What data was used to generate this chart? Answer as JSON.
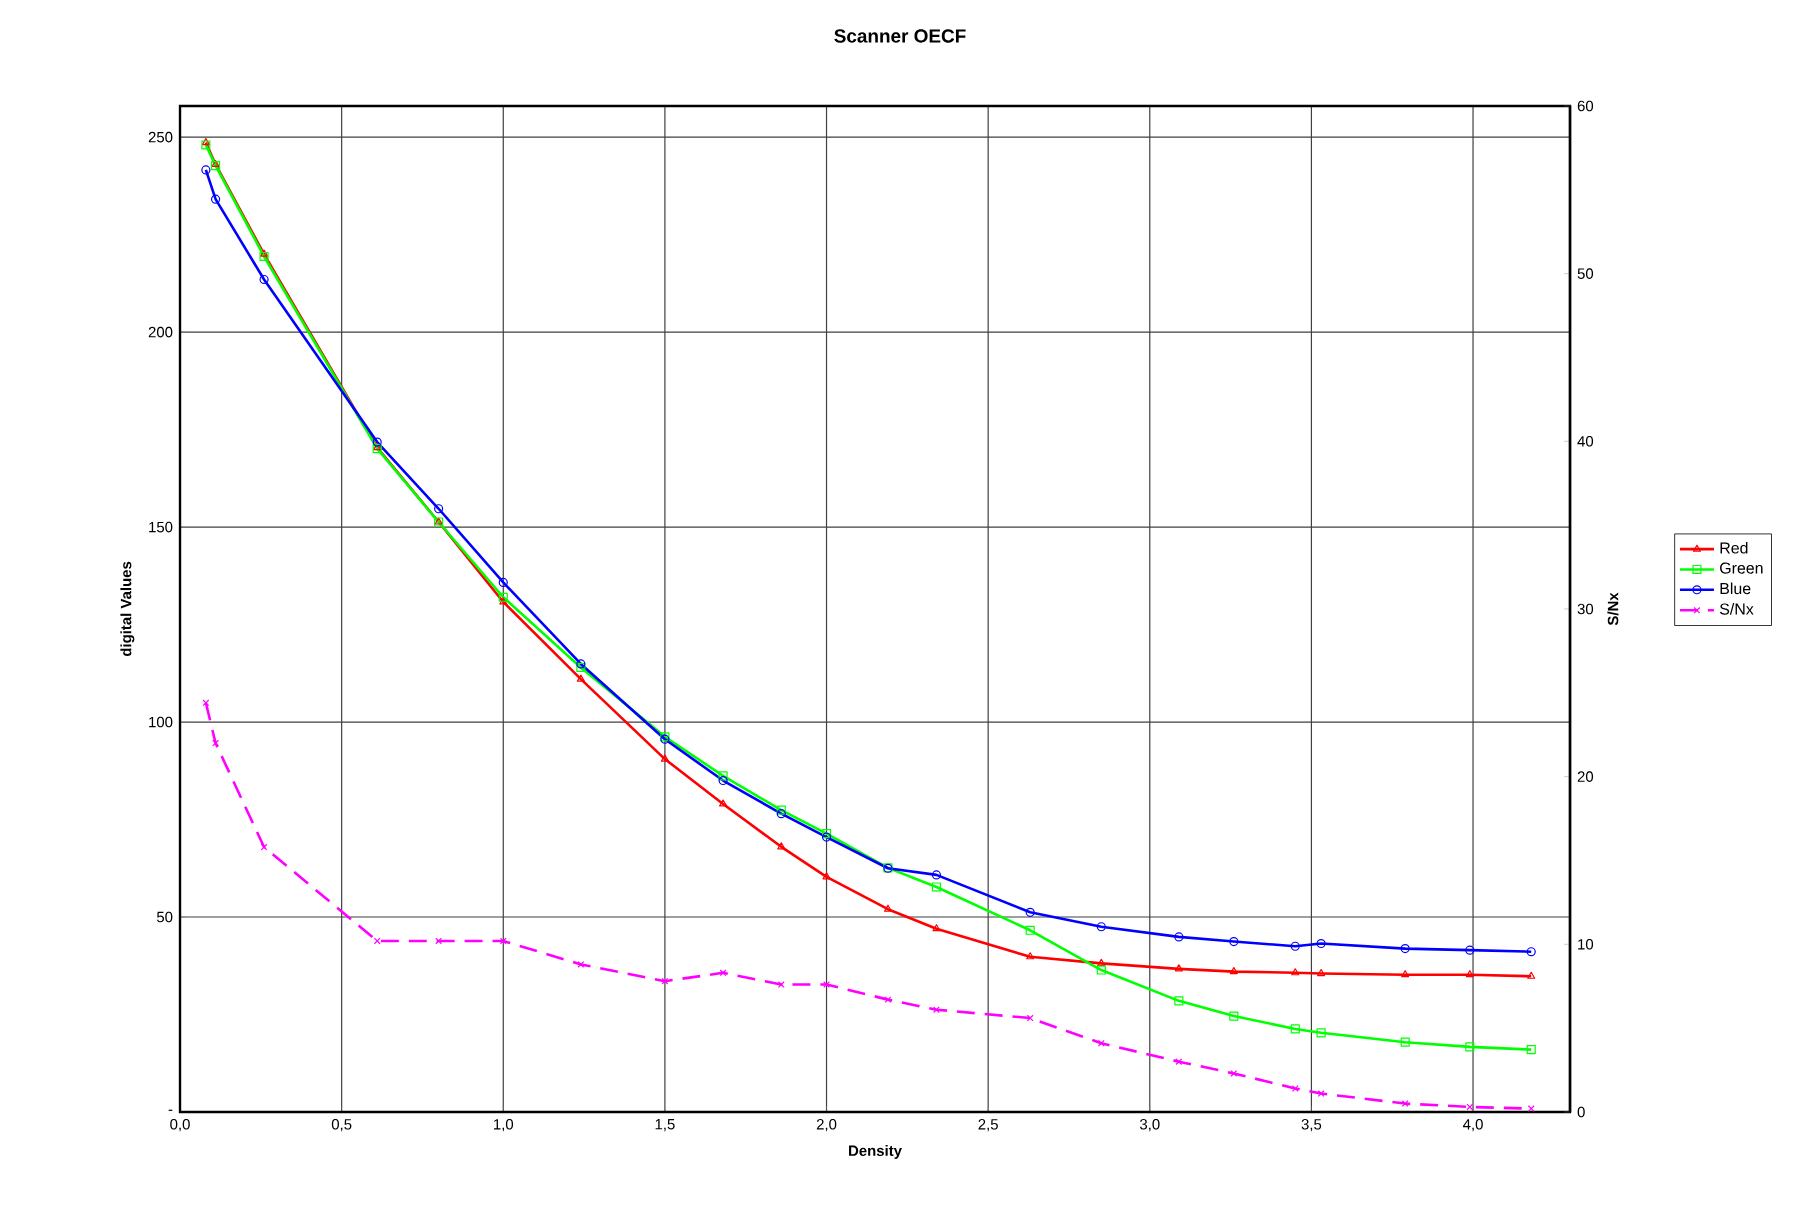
{
  "chart_data": {
    "type": "line",
    "title": "Scanner OECF",
    "xlabel": "Density",
    "ylabel": "digital Values",
    "y2label": "S/Nx",
    "x": [
      0.08,
      0.11,
      0.26,
      0.61,
      0.8,
      1.0,
      1.24,
      1.5,
      1.68,
      1.86,
      2.0,
      2.19,
      2.34,
      2.63,
      2.85,
      3.09,
      3.26,
      3.45,
      3.53,
      3.79,
      3.99,
      4.18
    ],
    "series": [
      {
        "name": "Red",
        "color": "#ff0000",
        "marker": "triangle",
        "line_style": "solid",
        "values": [
          248.6,
          243,
          220,
          170.4,
          151.3,
          130.8,
          111,
          90.5,
          79,
          68,
          60.3,
          52,
          47,
          39.8,
          38.1,
          36.7,
          36.0,
          35.7,
          35.5,
          35.2,
          35.2,
          34.8
        ]
      },
      {
        "name": "Green",
        "color": "#00ff00",
        "marker": "square",
        "line_style": "solid",
        "values": [
          248,
          242.7,
          219.4,
          170.1,
          151.3,
          132,
          114,
          96.2,
          86.2,
          77.4,
          71.4,
          62.6,
          57.7,
          46.6,
          36.4,
          28.5,
          24.6,
          21.3,
          20.3,
          17.9,
          16.7,
          16.0
        ]
      },
      {
        "name": "Blue",
        "color": "#0000ff",
        "marker": "circle",
        "line_style": "solid",
        "values": [
          241.6,
          234.1,
          213.5,
          171.8,
          154.7,
          135.8,
          114.9,
          95.6,
          85,
          76.5,
          70.5,
          62.5,
          60.8,
          51.2,
          47.5,
          44.9,
          43.7,
          42.5,
          43.2,
          41.9,
          41.5,
          41.1
        ]
      },
      {
        "name": "S/Nx",
        "color": "#ff00ff",
        "marker": "cross",
        "line_style": "dashed",
        "axis": "y2",
        "values": [
          24.4,
          22.0,
          15.8,
          10.2,
          10.2,
          10.2,
          8.8,
          7.8,
          8.3,
          7.6,
          7.6,
          6.7,
          6.1,
          5.6,
          4.1,
          3.0,
          2.3,
          1.4,
          1.1,
          0.5,
          0.3,
          0.2
        ]
      }
    ],
    "xlim": [
      0,
      4.3
    ],
    "xticks": [
      {
        "value": 0,
        "label": "0,0"
      },
      {
        "value": 0.5,
        "label": "0,5"
      },
      {
        "value": 1,
        "label": "1,0"
      },
      {
        "value": 1.5,
        "label": "1,5"
      },
      {
        "value": 2,
        "label": "2,0"
      },
      {
        "value": 2.5,
        "label": "2,5"
      },
      {
        "value": 3,
        "label": "3,0"
      },
      {
        "value": 3.5,
        "label": "3,5"
      },
      {
        "value": 4,
        "label": "4,0"
      }
    ],
    "ylim": [
      0,
      258
    ],
    "yticks": [
      {
        "value": 0,
        "label": "-"
      },
      50,
      100,
      150,
      200,
      250
    ],
    "y2lim": [
      0,
      60
    ],
    "y2ticks": [
      0,
      10,
      20,
      30,
      40,
      50,
      60
    ],
    "grid": true,
    "legend": "right"
  }
}
